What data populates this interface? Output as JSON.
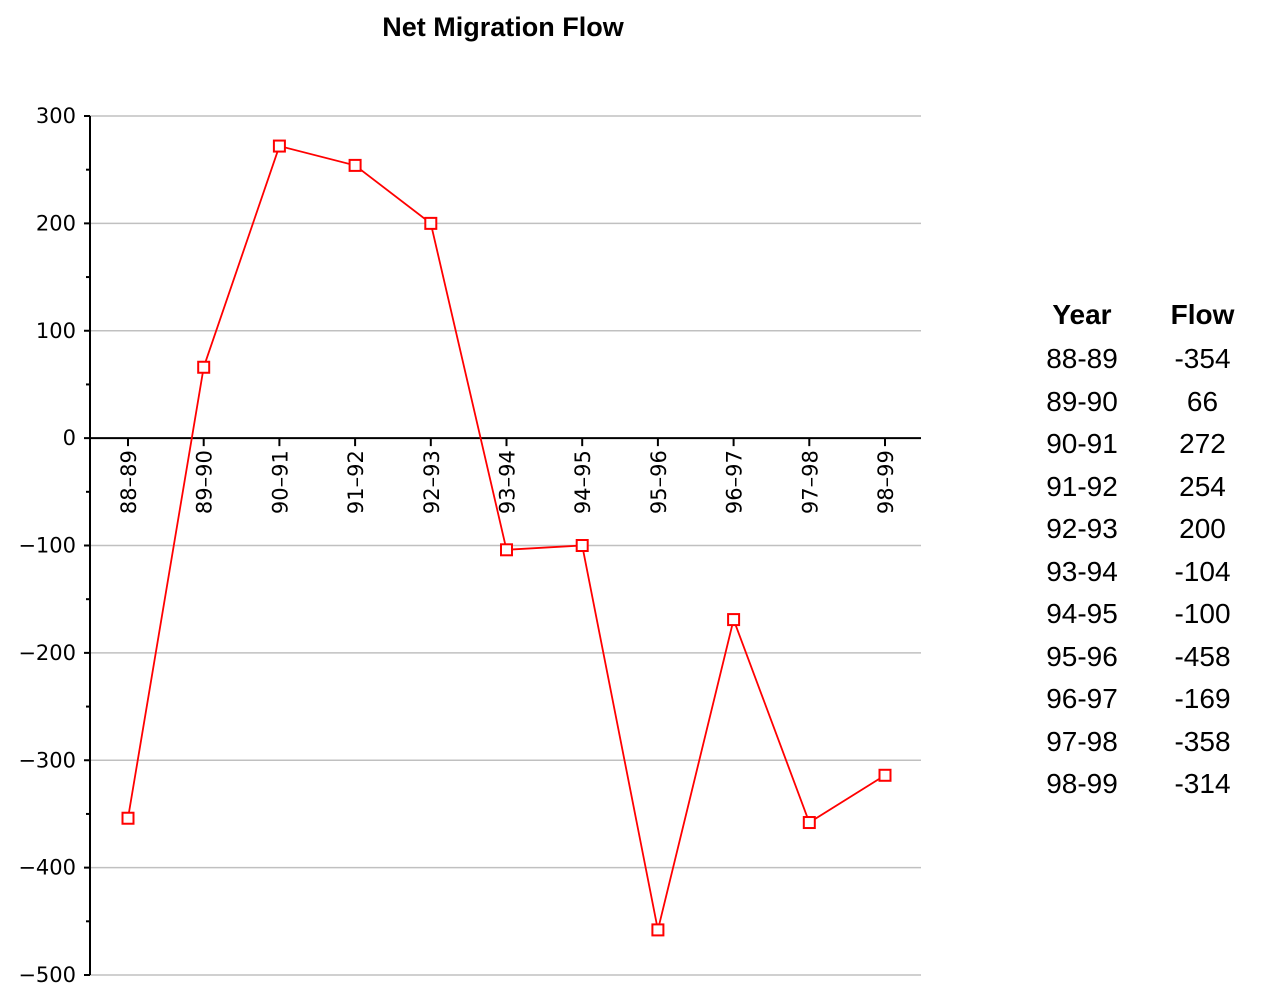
{
  "chart_data": {
    "type": "line",
    "title": "Net Migration Flow",
    "categories": [
      "88–89",
      "89–90",
      "90–91",
      "91–92",
      "92–93",
      "93–94",
      "94–95",
      "95–96",
      "96–97",
      "97–98",
      "98–99"
    ],
    "series": [
      {
        "values": [
          -354,
          66,
          272,
          254,
          200,
          -104,
          -100,
          -458,
          -169,
          -358,
          -314
        ],
        "color": "#ff0000"
      }
    ],
    "ylim": [
      -500,
      300
    ],
    "yticks": [
      300,
      200,
      100,
      0,
      -100,
      -200,
      -300,
      -400,
      -500
    ],
    "ytick_labels": [
      "300",
      "200",
      "100",
      "0",
      "−100",
      "−200",
      "−300",
      "−400",
      "−500"
    ],
    "grid": true,
    "grid_color": "#c0c0c0"
  },
  "table": {
    "headers": {
      "year": "Year",
      "flow": "Flow"
    },
    "rows": [
      {
        "year": "88-89",
        "flow": "-354"
      },
      {
        "year": "89-90",
        "flow": "66"
      },
      {
        "year": "90-91",
        "flow": "272"
      },
      {
        "year": "91-92",
        "flow": "254"
      },
      {
        "year": "92-93",
        "flow": "200"
      },
      {
        "year": "93-94",
        "flow": "-104"
      },
      {
        "year": "94-95",
        "flow": "-100"
      },
      {
        "year": "95-96",
        "flow": "-458"
      },
      {
        "year": "96-97",
        "flow": "-169"
      },
      {
        "year": "97-98",
        "flow": "-358"
      },
      {
        "year": "98-99",
        "flow": "-314"
      }
    ]
  }
}
